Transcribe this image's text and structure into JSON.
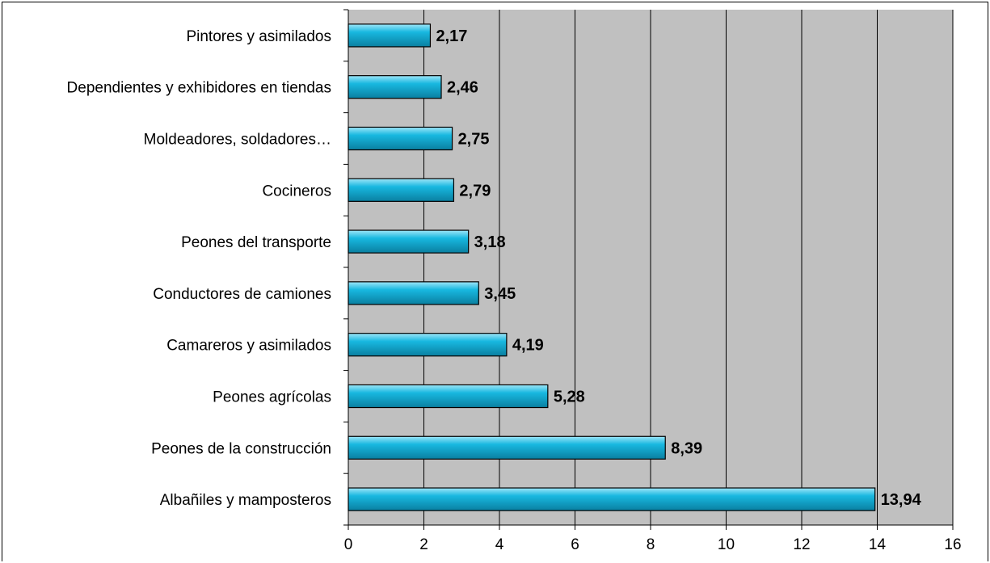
{
  "chart_data": {
    "type": "bar",
    "orientation": "horizontal",
    "categories": [
      "Albañiles y mamposteros",
      "Peones de la construcción",
      "Peones agrícolas",
      "Camareros y asimilados",
      "Conductores de camiones",
      "Peones del transporte",
      "Cocineros",
      "Moldeadores, soldadores…",
      "Dependientes y exhibidores en tiendas",
      "Pintores y asimilados"
    ],
    "values": [
      13.94,
      8.39,
      5.28,
      4.19,
      3.45,
      3.18,
      2.79,
      2.75,
      2.46,
      2.17
    ],
    "data_labels": [
      "13,94",
      "8,39",
      "5,28",
      "4,19",
      "3,45",
      "3,18",
      "2,79",
      "2,75",
      "2,46",
      "2,17"
    ],
    "xlim": [
      0,
      16
    ],
    "x_ticks": [
      0,
      2,
      4,
      6,
      8,
      10,
      12,
      14,
      16
    ],
    "title": "",
    "xlabel": "",
    "ylabel": "",
    "grid": "vertical",
    "legend": "none",
    "colors": {
      "bar_fill": "#18B8E0",
      "bar_highlight": "#9FE6F8",
      "bar_shadow": "#0A7FA0",
      "plot_background": "#C0C0C0",
      "gridline": "#000000"
    }
  }
}
